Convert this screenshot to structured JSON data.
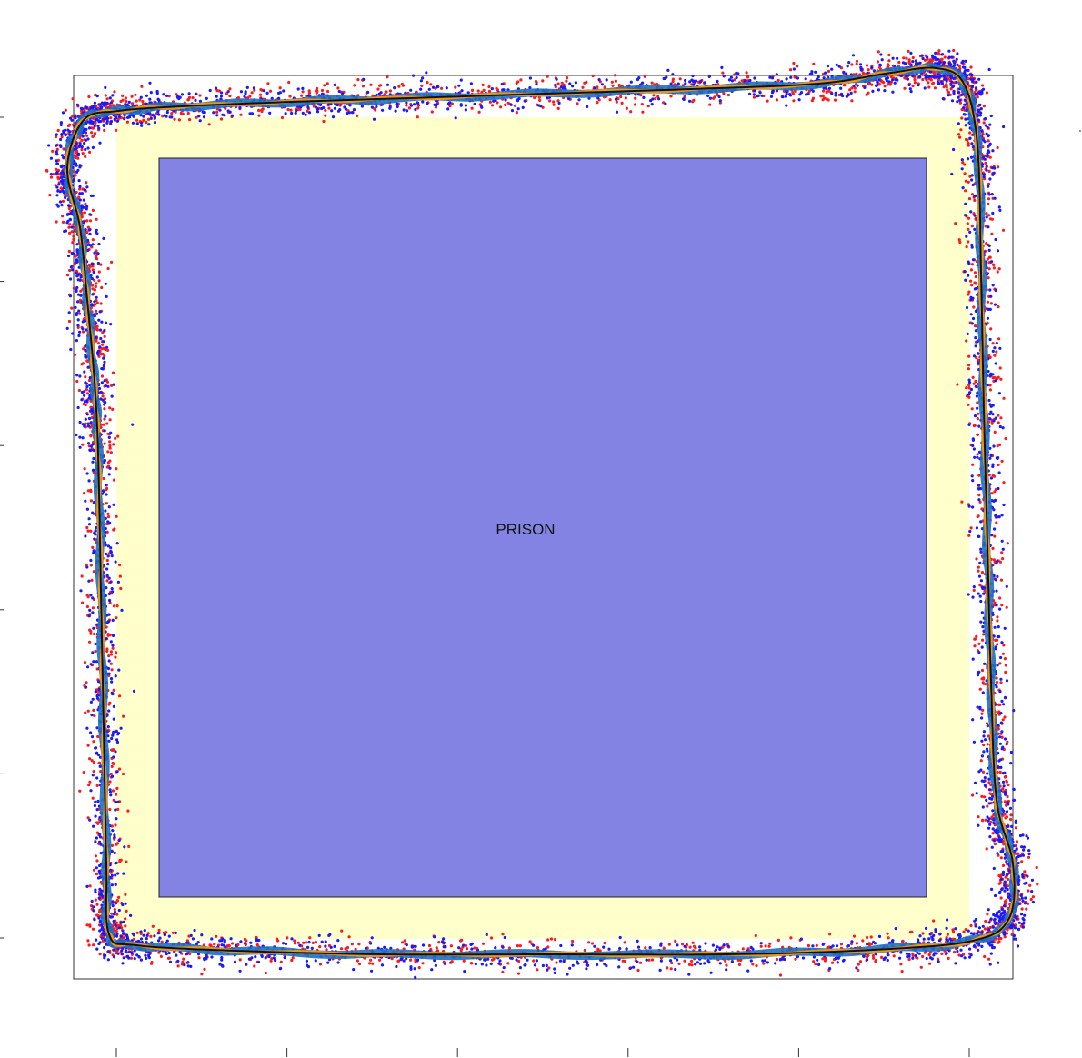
{
  "figure": {
    "region_label": "PRISON",
    "colors": {
      "prison_fill": "#8383e3",
      "buffer_fill": "#ffffcc",
      "frame_stroke": "#333333",
      "mean_track": "#111111",
      "track_blue": "#1f6fbf",
      "track_orange": "#ff9900",
      "points_red": "#ff1a1a",
      "points_blue": "#1a1aff"
    },
    "legend": null,
    "ticks": {
      "x_count": 6,
      "y_count": 6,
      "labels_visible": false
    }
  }
}
